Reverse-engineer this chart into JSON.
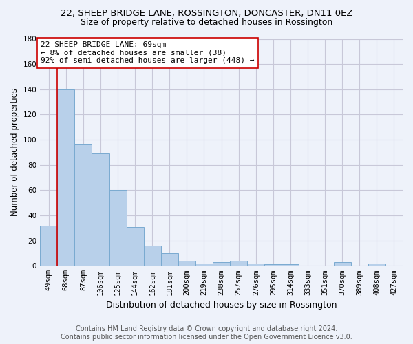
{
  "title_line1": "22, SHEEP BRIDGE LANE, ROSSINGTON, DONCASTER, DN11 0EZ",
  "title_line2": "Size of property relative to detached houses in Rossington",
  "xlabel": "Distribution of detached houses by size in Rossington",
  "ylabel": "Number of detached properties",
  "categories": [
    "49sqm",
    "68sqm",
    "87sqm",
    "106sqm",
    "125sqm",
    "144sqm",
    "162sqm",
    "181sqm",
    "200sqm",
    "219sqm",
    "238sqm",
    "257sqm",
    "276sqm",
    "295sqm",
    "314sqm",
    "333sqm",
    "351sqm",
    "370sqm",
    "389sqm",
    "408sqm",
    "427sqm"
  ],
  "values": [
    32,
    140,
    96,
    89,
    60,
    31,
    16,
    10,
    4,
    2,
    3,
    4,
    2,
    1,
    1,
    0,
    0,
    3,
    0,
    2,
    0
  ],
  "bar_color": "#b8d0ea",
  "bar_edge_color": "#7aaad0",
  "vline_x": 0.5,
  "vline_color": "#cc0000",
  "annotation_text": "22 SHEEP BRIDGE LANE: 69sqm\n← 8% of detached houses are smaller (38)\n92% of semi-detached houses are larger (448) →",
  "annotation_box_color": "#ffffff",
  "annotation_box_edge_color": "#cc0000",
  "ylim": [
    0,
    180
  ],
  "yticks": [
    0,
    20,
    40,
    60,
    80,
    100,
    120,
    140,
    160,
    180
  ],
  "grid_color": "#c8c8d8",
  "bg_color": "#eef2fa",
  "footer_line1": "Contains HM Land Registry data © Crown copyright and database right 2024.",
  "footer_line2": "Contains public sector information licensed under the Open Government Licence v3.0.",
  "title_fontsize": 9.5,
  "subtitle_fontsize": 9,
  "ylabel_fontsize": 8.5,
  "xlabel_fontsize": 9,
  "tick_fontsize": 7.5,
  "annotation_fontsize": 8,
  "footer_fontsize": 7
}
